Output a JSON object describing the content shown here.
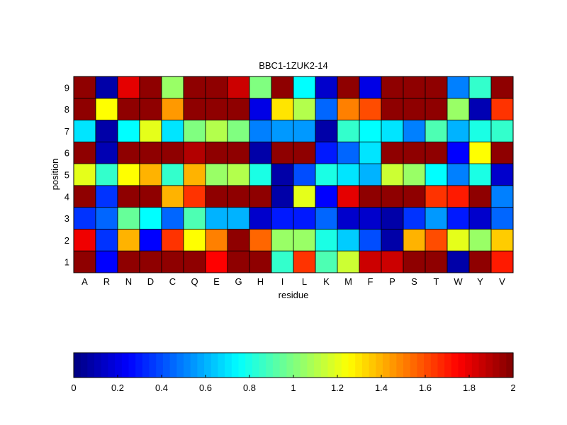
{
  "chart_data": {
    "type": "heatmap",
    "title": "BBC1-1ZUK2-14",
    "xlabel": "residue",
    "ylabel": "position",
    "x_categories": [
      "A",
      "R",
      "N",
      "D",
      "C",
      "Q",
      "E",
      "G",
      "H",
      "I",
      "L",
      "K",
      "M",
      "F",
      "P",
      "S",
      "T",
      "W",
      "Y",
      "V"
    ],
    "y_categories": [
      "1",
      "2",
      "3",
      "4",
      "5",
      "6",
      "7",
      "8",
      "9"
    ],
    "values": [
      [
        1.97,
        0.25,
        1.97,
        1.97,
        1.97,
        1.97,
        1.75,
        1.97,
        1.97,
        0.85,
        1.65,
        0.9,
        1.15,
        1.85,
        1.85,
        1.97,
        1.97,
        0.08,
        1.97,
        1.7
      ],
      [
        1.78,
        0.35,
        1.4,
        0.25,
        1.65,
        1.25,
        1.5,
        1.97,
        1.55,
        1.05,
        1.05,
        0.8,
        0.65,
        0.4,
        0.08,
        1.4,
        1.6,
        1.2,
        1.05,
        1.35
      ],
      [
        0.35,
        0.45,
        0.95,
        0.75,
        0.45,
        0.9,
        0.6,
        0.6,
        0.15,
        0.3,
        0.3,
        0.45,
        0.15,
        0.15,
        0.08,
        0.35,
        0.55,
        0.3,
        0.15,
        0.45
      ],
      [
        1.97,
        0.35,
        1.97,
        1.97,
        1.4,
        1.65,
        1.97,
        1.97,
        1.97,
        0.08,
        1.2,
        0.25,
        1.8,
        1.97,
        1.97,
        1.97,
        1.65,
        1.7,
        1.97,
        0.5
      ],
      [
        1.2,
        0.85,
        1.25,
        1.4,
        0.85,
        1.4,
        1.05,
        1.1,
        0.8,
        0.08,
        0.4,
        0.8,
        0.7,
        0.6,
        1.15,
        1.05,
        0.75,
        0.5,
        0.8,
        0.15
      ],
      [
        1.97,
        0.1,
        1.97,
        1.97,
        1.97,
        1.9,
        1.97,
        1.97,
        0.08,
        1.97,
        1.97,
        0.3,
        0.45,
        0.7,
        1.97,
        1.97,
        1.97,
        0.25,
        1.25,
        1.97
      ],
      [
        0.7,
        0.08,
        0.75,
        1.2,
        0.7,
        1.0,
        1.1,
        1.0,
        0.5,
        0.55,
        0.55,
        0.08,
        0.85,
        0.75,
        0.7,
        0.5,
        0.9,
        0.6,
        0.8,
        0.85
      ],
      [
        1.97,
        1.25,
        1.97,
        1.97,
        1.45,
        1.97,
        1.97,
        1.97,
        0.2,
        1.3,
        1.1,
        0.45,
        1.5,
        1.6,
        1.97,
        1.97,
        1.97,
        1.05,
        0.1,
        1.65
      ],
      [
        1.97,
        0.08,
        1.8,
        1.97,
        1.05,
        1.97,
        1.97,
        1.85,
        1.0,
        1.97,
        0.75,
        0.15,
        1.97,
        0.2,
        1.97,
        1.97,
        1.97,
        0.5,
        0.85,
        1.97
      ]
    ],
    "colorbar": {
      "min": 0,
      "max": 2,
      "ticks": [
        0,
        0.2,
        0.4,
        0.6,
        0.8,
        1,
        1.2,
        1.4,
        1.6,
        1.8,
        2
      ],
      "tick_labels": [
        "0",
        "0.2",
        "0.4",
        "0.6",
        "0.8",
        "1",
        "1.2",
        "1.4",
        "1.6",
        "1.8",
        "2"
      ],
      "colormap": "jet",
      "orientation": "horizontal",
      "placement": "bottom"
    },
    "grid": false
  }
}
